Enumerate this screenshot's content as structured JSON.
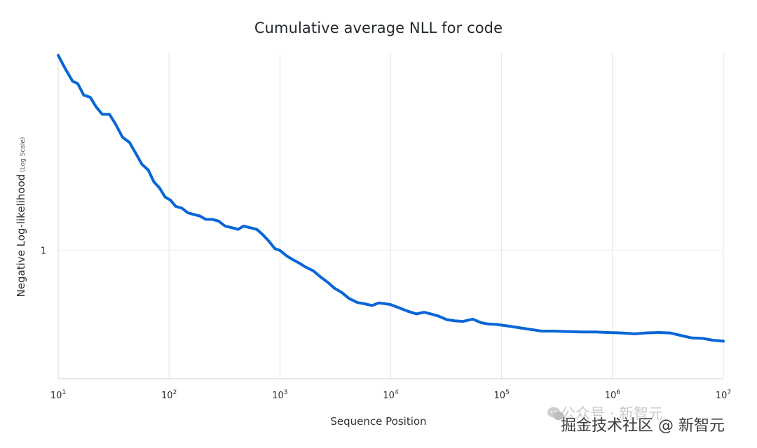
{
  "chart_data": {
    "type": "line",
    "title": "Cumulative average NLL for code",
    "xlabel": "Sequence Position",
    "ylabel": "Negative Log-likelihood",
    "ylabel_suffix": "(Log Scale)",
    "xscale": "log",
    "yscale": "log",
    "xlim": [
      10,
      10000000
    ],
    "ylim": [
      0.7,
      1.73
    ],
    "grid": true,
    "legend": "none",
    "x_ticks": [
      {
        "value": 10,
        "base": "10",
        "exp": "1"
      },
      {
        "value": 100,
        "base": "10",
        "exp": "2"
      },
      {
        "value": 1000,
        "base": "10",
        "exp": "3"
      },
      {
        "value": 10000,
        "base": "10",
        "exp": "4"
      },
      {
        "value": 100000,
        "base": "10",
        "exp": "5"
      },
      {
        "value": 1000000,
        "base": "10",
        "exp": "6"
      },
      {
        "value": 10000000,
        "base": "10",
        "exp": "7"
      }
    ],
    "y_ticks": [
      {
        "value": 1,
        "label": "1"
      }
    ],
    "series": [
      {
        "name": "code",
        "color": "#0866d6",
        "x": [
          10,
          11.5,
          13.5,
          15,
          17,
          19.5,
          22,
          25,
          29,
          33,
          38,
          44,
          50,
          57,
          65,
          73,
          82,
          92,
          103,
          115,
          130,
          148,
          168,
          190,
          215,
          245,
          280,
          320,
          370,
          420,
          470,
          540,
          620,
          700,
          800,
          900,
          1000,
          1150,
          1300,
          1500,
          1700,
          2000,
          2300,
          2700,
          3100,
          3600,
          4200,
          5000,
          5800,
          6800,
          7800,
          9000,
          10000,
          12000,
          14000,
          17000,
          20000,
          23000,
          27000,
          32000,
          38000,
          45000,
          55000,
          65000,
          75000,
          90000,
          110000,
          140000,
          180000,
          230000,
          300000,
          400000,
          550000,
          700000,
          900000,
          1200000,
          1600000,
          2000000,
          2600000,
          3300000,
          4200000,
          5200000,
          6500000,
          8000000,
          10000000
        ],
        "y": [
          1.72,
          1.66,
          1.6,
          1.59,
          1.54,
          1.53,
          1.49,
          1.46,
          1.46,
          1.42,
          1.37,
          1.35,
          1.31,
          1.27,
          1.25,
          1.21,
          1.19,
          1.16,
          1.15,
          1.13,
          1.125,
          1.11,
          1.105,
          1.1,
          1.09,
          1.09,
          1.085,
          1.07,
          1.065,
          1.06,
          1.07,
          1.065,
          1.06,
          1.045,
          1.025,
          1.005,
          1.0,
          0.985,
          0.975,
          0.965,
          0.955,
          0.945,
          0.93,
          0.915,
          0.9,
          0.89,
          0.875,
          0.865,
          0.862,
          0.858,
          0.864,
          0.862,
          0.86,
          0.852,
          0.845,
          0.838,
          0.842,
          0.838,
          0.833,
          0.825,
          0.822,
          0.821,
          0.826,
          0.818,
          0.815,
          0.814,
          0.811,
          0.807,
          0.803,
          0.799,
          0.799,
          0.798,
          0.797,
          0.797,
          0.796,
          0.795,
          0.793,
          0.795,
          0.796,
          0.795,
          0.789,
          0.784,
          0.783,
          0.779,
          0.777
        ]
      }
    ]
  },
  "watermark": {
    "line1": "公众号 · 新智元",
    "line2": "掘金技术社区 @ 新智元"
  }
}
